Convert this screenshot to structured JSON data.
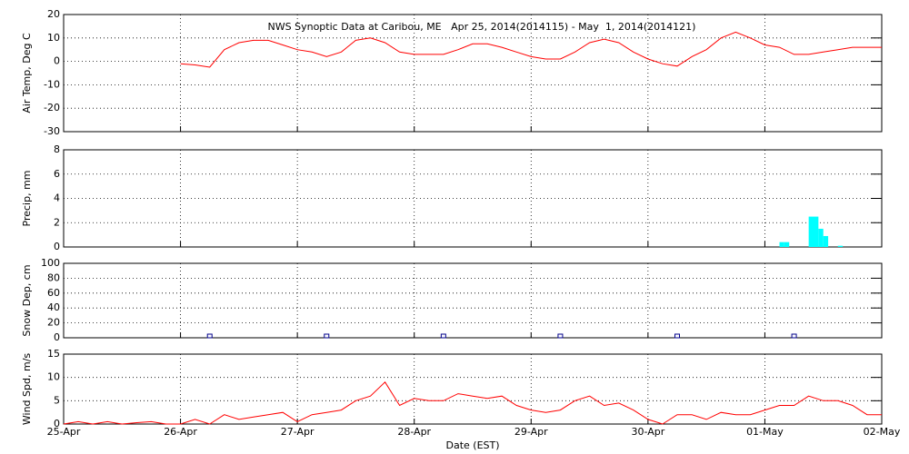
{
  "chart_data": [
    {
      "type": "line",
      "title": "NWS Synoptic Data at Caribou, ME   Apr 25, 2014(2014115) - May  1, 2014(2014121)",
      "ylabel": "Air Temp, Deg C",
      "xlim": [
        0,
        168
      ],
      "xticks": [
        24,
        48,
        72,
        96,
        120,
        144
      ],
      "ylim": [
        -30,
        20
      ],
      "yticks": [
        -30,
        -20,
        -10,
        0,
        10,
        20
      ],
      "grid": true,
      "series": [
        {
          "color": "#ff0000",
          "x": [
            24,
            27,
            30,
            33,
            36,
            39,
            42,
            45,
            48,
            51,
            54,
            57,
            60,
            63,
            66,
            69,
            72,
            75,
            78,
            81,
            84,
            87,
            90,
            93,
            96,
            99,
            102,
            105,
            108,
            111,
            114,
            117,
            120,
            123,
            126,
            129,
            132,
            135,
            138,
            141,
            144,
            147,
            150,
            153,
            156,
            159,
            162,
            165,
            168
          ],
          "values": [
            -1,
            -1.5,
            -2.5,
            5,
            8,
            9,
            9,
            7,
            5,
            4,
            2,
            4,
            9,
            10,
            8,
            4,
            3,
            3,
            3,
            5,
            7.5,
            7.5,
            6,
            4,
            2,
            1,
            1,
            4,
            8,
            9.5,
            8,
            4,
            1,
            -1,
            -2,
            2,
            5,
            10,
            12.5,
            10,
            7,
            6,
            3,
            3,
            4,
            5,
            6,
            6,
            6
          ]
        }
      ]
    },
    {
      "type": "bar",
      "ylabel": "Precip, mm",
      "xlim": [
        0,
        168
      ],
      "xticks": [
        24,
        48,
        72,
        96,
        120,
        144
      ],
      "ylim": [
        0,
        8
      ],
      "yticks": [
        0,
        2,
        4,
        6,
        8
      ],
      "grid": true,
      "series": [
        {
          "color": "#00ffff",
          "x": [
            147,
            148,
            153,
            154,
            155,
            156,
            159
          ],
          "values": [
            0.4,
            0.4,
            2.5,
            2.5,
            1.5,
            0.9,
            0.1
          ]
        }
      ]
    },
    {
      "type": "scatter",
      "ylabel": "Snow Dep, cm",
      "xlim": [
        0,
        168
      ],
      "xticks": [
        24,
        48,
        72,
        96,
        120,
        144
      ],
      "ylim": [
        0,
        100
      ],
      "yticks": [
        0,
        20,
        40,
        60,
        80,
        100
      ],
      "grid": true,
      "series": [
        {
          "color": "#00008b",
          "x": [
            30,
            54,
            78,
            102,
            126,
            150
          ],
          "values": [
            0,
            0,
            0,
            0,
            0,
            0
          ]
        }
      ]
    },
    {
      "type": "line",
      "ylabel": "Wind Spd, m/s",
      "xlabel": "Date (EST)",
      "xlim": [
        0,
        168
      ],
      "xticks": [
        {
          "value": 0,
          "label": "25-Apr"
        },
        {
          "value": 24,
          "label": "26-Apr"
        },
        {
          "value": 48,
          "label": "27-Apr"
        },
        {
          "value": 72,
          "label": "28-Apr"
        },
        {
          "value": 96,
          "label": "29-Apr"
        },
        {
          "value": 120,
          "label": "30-Apr"
        },
        {
          "value": 144,
          "label": "01-May"
        },
        {
          "value": 168,
          "label": "02-May"
        }
      ],
      "ylim": [
        0,
        15
      ],
      "yticks": [
        0,
        5,
        10,
        15
      ],
      "grid": true,
      "series": [
        {
          "color": "#ff0000",
          "x": [
            0,
            3,
            6,
            9,
            12,
            15,
            18,
            21,
            24,
            27,
            30,
            33,
            36,
            39,
            42,
            45,
            48,
            51,
            54,
            57,
            60,
            63,
            66,
            69,
            72,
            75,
            78,
            81,
            84,
            87,
            90,
            93,
            96,
            99,
            102,
            105,
            108,
            111,
            114,
            117,
            120,
            123,
            126,
            129,
            132,
            135,
            138,
            141,
            144,
            147,
            150,
            153,
            156,
            159,
            162,
            165,
            168
          ],
          "values": [
            0,
            0.5,
            0,
            0.5,
            0,
            0.3,
            0.5,
            0,
            0,
            1,
            0,
            2,
            1,
            1.5,
            2,
            2.5,
            0.5,
            2,
            2.5,
            3,
            5,
            6,
            9,
            4,
            5.5,
            5,
            5,
            6.5,
            6,
            5.5,
            6,
            4,
            3,
            2.5,
            3,
            5,
            6,
            4,
            4.5,
            3,
            1,
            0,
            2,
            2,
            1,
            2.5,
            2,
            2,
            3,
            4,
            4,
            6,
            5,
            5,
            4,
            2,
            2
          ]
        }
      ]
    }
  ]
}
